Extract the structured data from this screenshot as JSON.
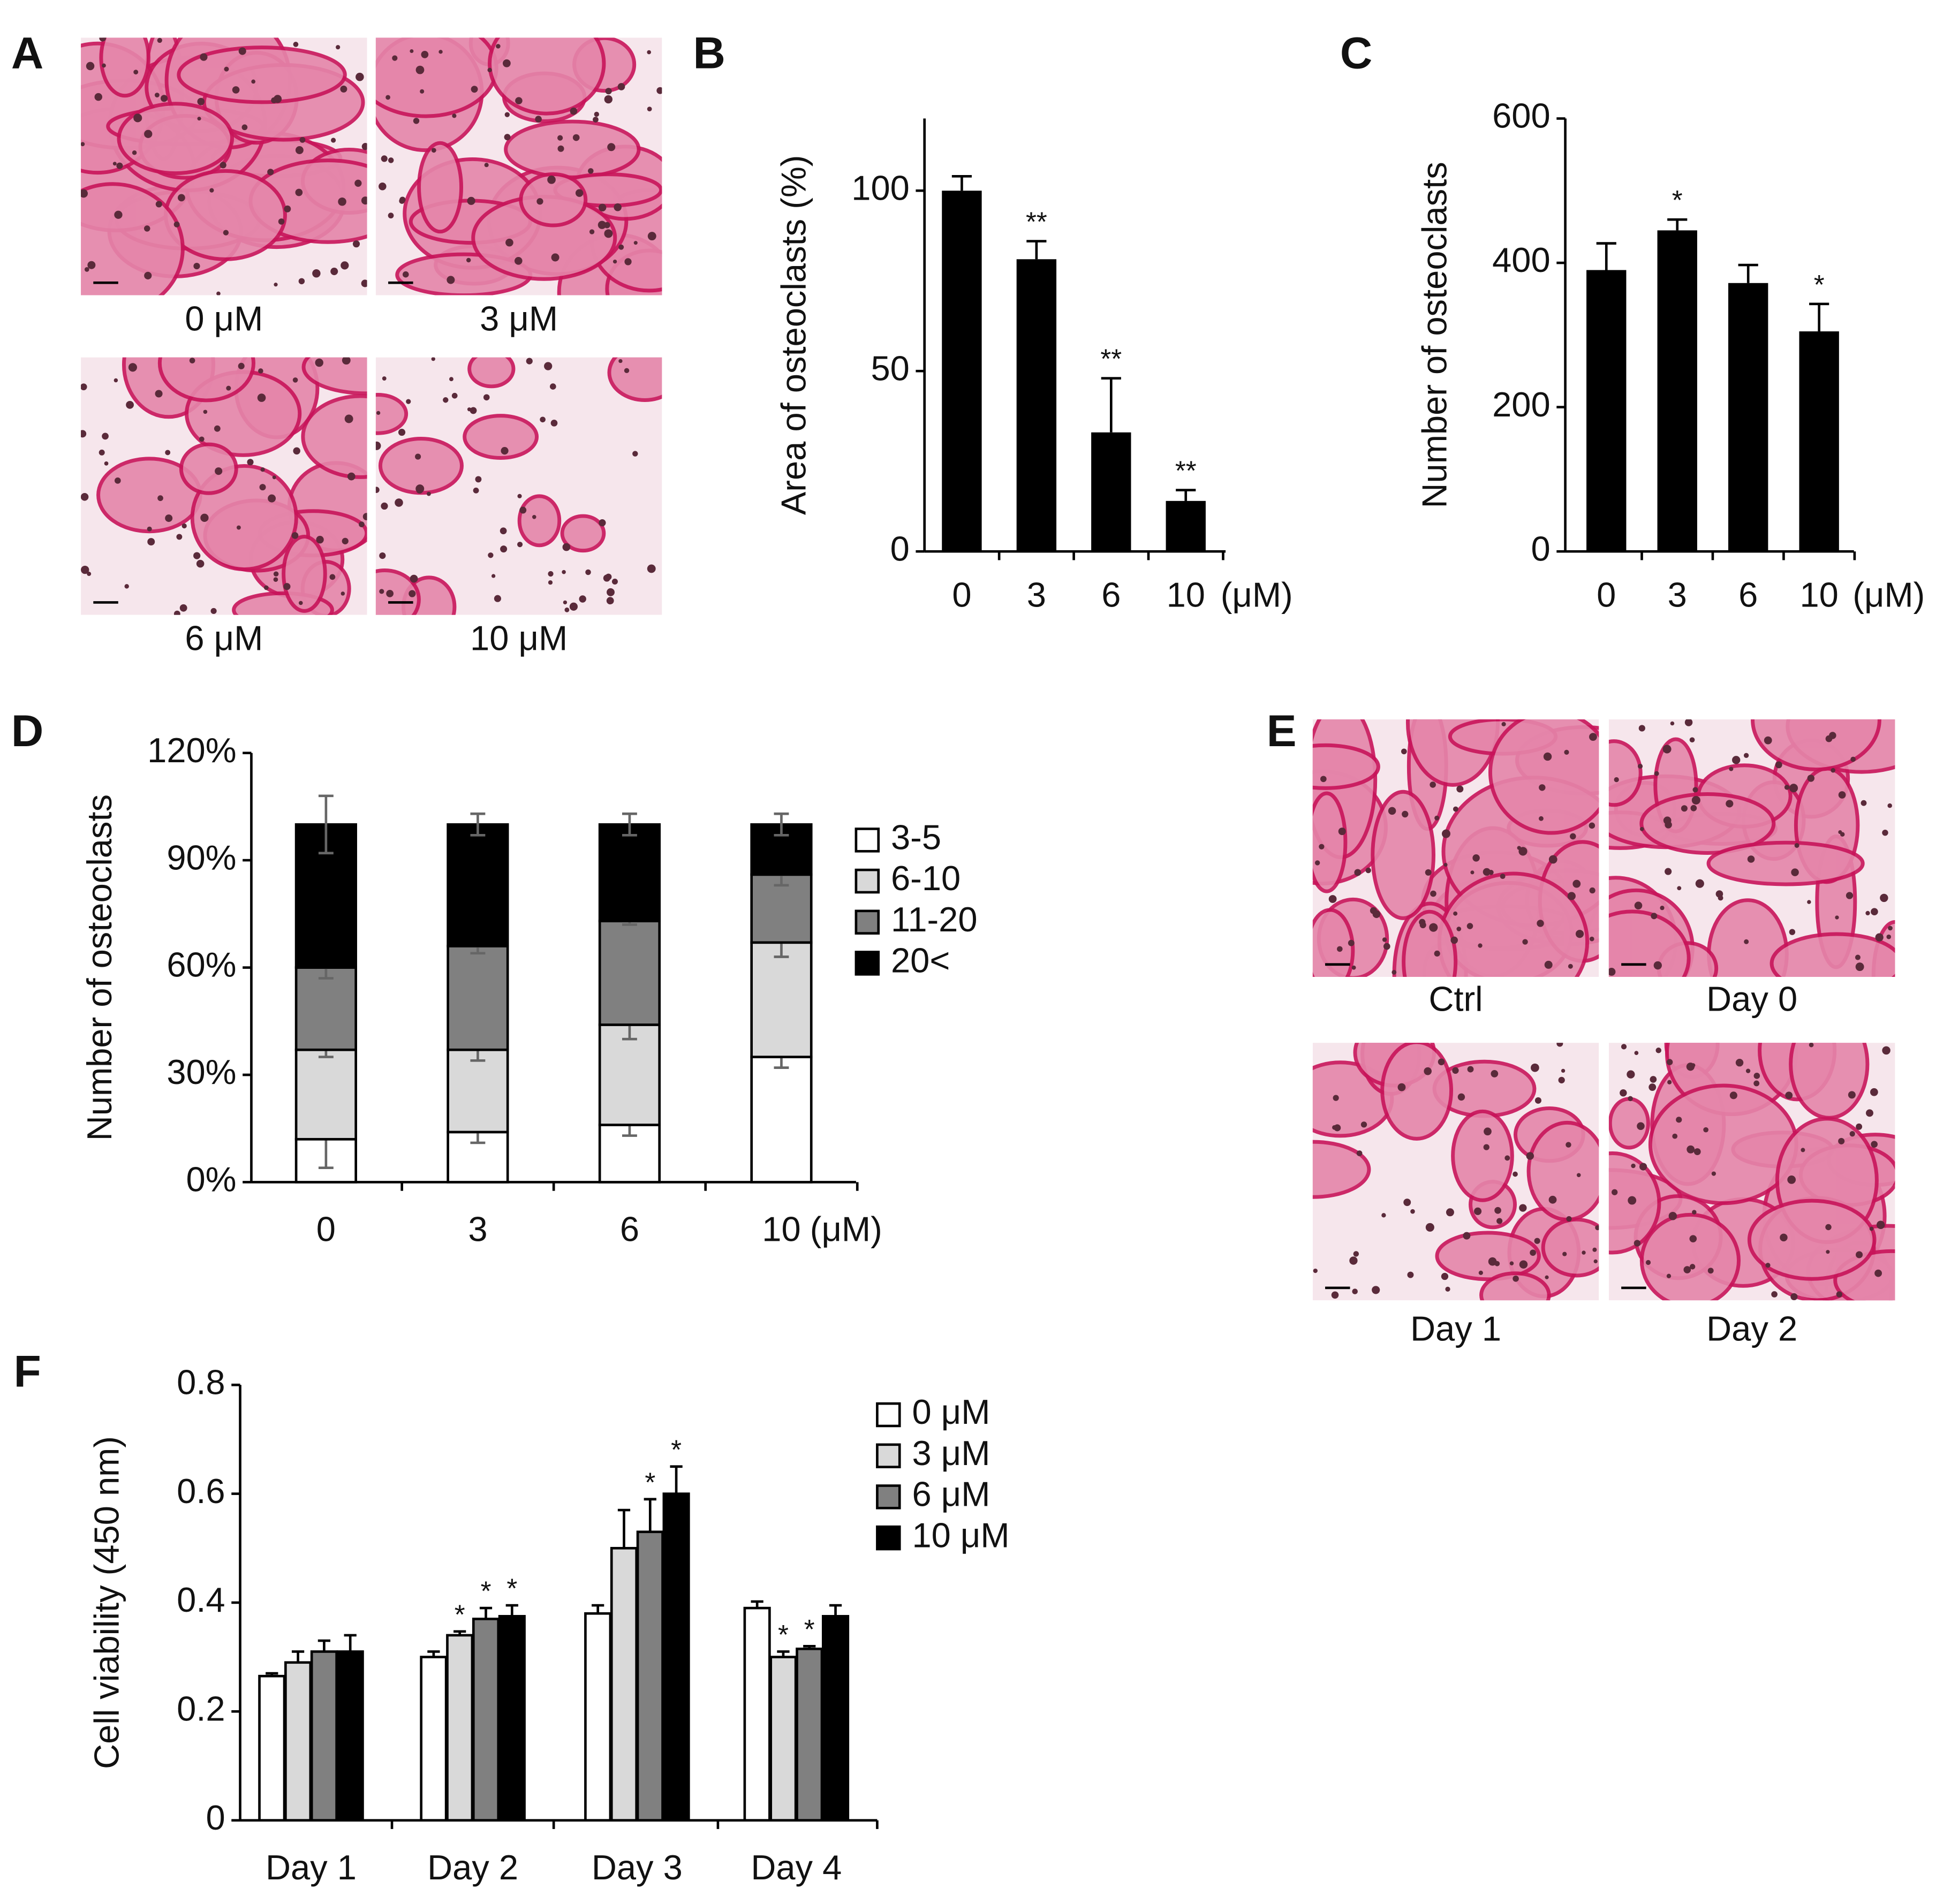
{
  "image_panels": [
    {
      "panel": "A",
      "captions": [
        "0 μM",
        "3 μM",
        "6 μM",
        "10 μM"
      ]
    },
    {
      "panel": "E",
      "captions": [
        "Ctrl",
        "Day 0",
        "Day 1",
        "Day 2"
      ]
    }
  ],
  "chart_data": [
    {
      "type": "bar",
      "panel": "B",
      "ylabel": "Area of osteoclasts (%)",
      "x_unit": "(μM)",
      "categories": [
        "0",
        "3",
        "6",
        "10"
      ],
      "values": [
        100,
        81,
        33,
        14
      ],
      "errors": [
        4,
        5,
        15,
        3
      ],
      "significance": [
        null,
        "**",
        "**",
        "**"
      ],
      "color": "#000000",
      "ylim": [
        0,
        120
      ],
      "yticks": [
        0,
        50,
        100
      ]
    },
    {
      "type": "bar",
      "panel": "C",
      "ylabel": "Number of osteoclasts",
      "x_unit": "(μM)",
      "categories": [
        "0",
        "3",
        "6",
        "10"
      ],
      "values": [
        390,
        445,
        372,
        305
      ],
      "errors": [
        37,
        15,
        25,
        38
      ],
      "significance": [
        null,
        "*",
        null,
        "*"
      ],
      "color": "#000000",
      "ylim": [
        0,
        600
      ],
      "yticks": [
        0,
        200,
        400,
        600
      ]
    },
    {
      "type": "stacked_bar",
      "panel": "D",
      "ylabel": "Number of osteoclasts",
      "x_unit": "(μM)",
      "categories": [
        "0",
        "3",
        "6",
        "10"
      ],
      "series": [
        {
          "name": "3-5",
          "color": "#ffffff",
          "values": [
            12,
            14,
            16,
            35
          ],
          "errors": [
            8,
            3,
            3,
            3
          ]
        },
        {
          "name": "6-10",
          "color": "#d9d9d9",
          "values": [
            25,
            23,
            28,
            32
          ],
          "errors": [
            2,
            3,
            4,
            4
          ]
        },
        {
          "name": "11-20",
          "color": "#808080",
          "values": [
            23,
            29,
            29,
            19
          ],
          "errors": [
            3,
            2,
            1,
            3
          ]
        },
        {
          "name": "20<",
          "color": "#000000",
          "values": [
            40,
            34,
            27,
            14
          ],
          "errors": [
            8,
            3,
            3,
            3
          ]
        }
      ],
      "ylim": [
        0,
        120
      ],
      "yticks": [
        {
          "value": 0,
          "label": "0%"
        },
        {
          "value": 30,
          "label": "30%"
        },
        {
          "value": 60,
          "label": "60%"
        },
        {
          "value": 90,
          "label": "90%"
        },
        {
          "value": 120,
          "label": "120%"
        }
      ]
    },
    {
      "type": "grouped_bar",
      "panel": "F",
      "ylabel": "Cell viability (450 nm)",
      "categories": [
        "Day 1",
        "Day 2",
        "Day 3",
        "Day 4"
      ],
      "series": [
        {
          "name": "0 μM",
          "color": "#ffffff",
          "values": [
            0.265,
            0.3,
            0.38,
            0.39
          ],
          "errors": [
            0.005,
            0.01,
            0.015,
            0.012
          ],
          "significance": [
            null,
            null,
            null,
            null
          ]
        },
        {
          "name": "3 μM",
          "color": "#d9d9d9",
          "values": [
            0.29,
            0.34,
            0.5,
            0.3
          ],
          "errors": [
            0.02,
            0.007,
            0.07,
            0.01
          ],
          "significance": [
            null,
            "*",
            null,
            "*"
          ]
        },
        {
          "name": "6 μM",
          "color": "#808080",
          "values": [
            0.31,
            0.37,
            0.53,
            0.315
          ],
          "errors": [
            0.02,
            0.02,
            0.06,
            0.005
          ],
          "significance": [
            null,
            "*",
            "*",
            "*"
          ]
        },
        {
          "name": "10 μM",
          "color": "#000000",
          "values": [
            0.31,
            0.375,
            0.6,
            0.375
          ],
          "errors": [
            0.03,
            0.02,
            0.05,
            0.02
          ],
          "significance": [
            null,
            "*",
            "*",
            null
          ]
        }
      ],
      "ylim": [
        0,
        0.8
      ],
      "yticks": [
        0,
        0.2,
        0.4,
        0.6,
        0.8
      ]
    }
  ]
}
